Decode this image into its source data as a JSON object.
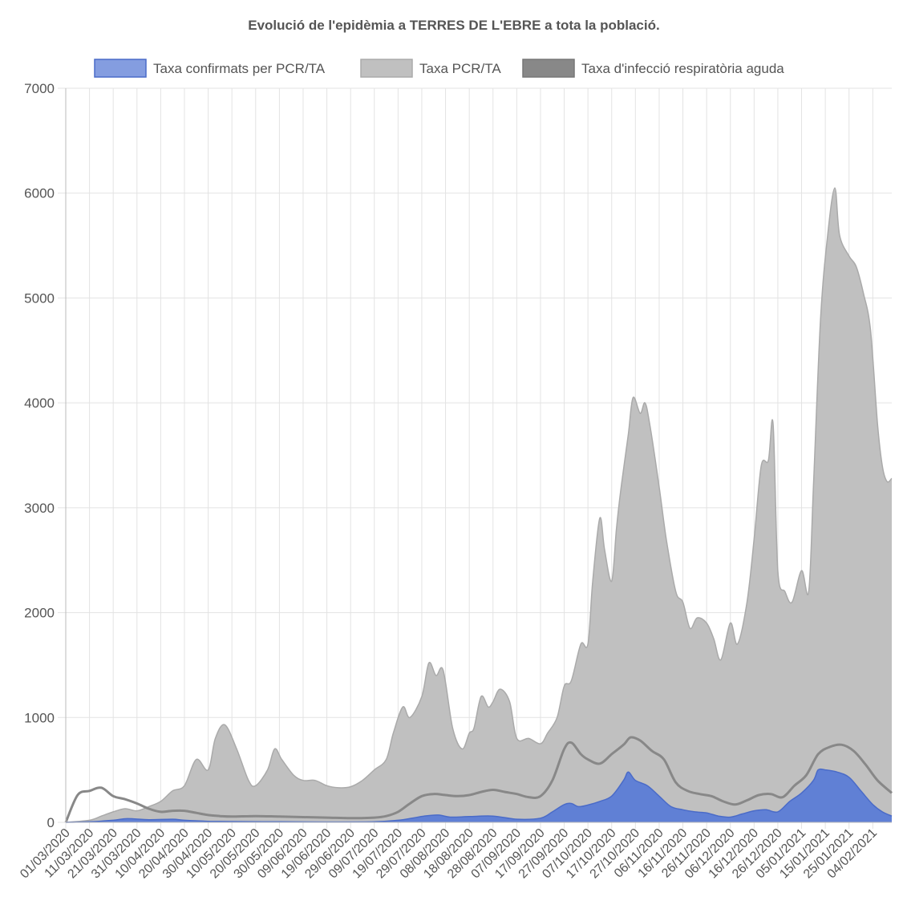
{
  "chart_data": {
    "type": "area",
    "title": "Evolució de l'epidèmia a TERRES DE L'EBRE a tota la població.",
    "xlabel": "",
    "ylabel": "",
    "ylim": [
      0,
      7000
    ],
    "yticks": [
      0,
      1000,
      2000,
      3000,
      4000,
      5000,
      6000,
      7000
    ],
    "x_range": [
      "01/03/2020",
      "12/02/2021"
    ],
    "xtick_labels": [
      "01/03/2020",
      "11/03/2020",
      "21/03/2020",
      "31/03/2020",
      "10/04/2020",
      "20/04/2020",
      "30/04/2020",
      "10/05/2020",
      "20/05/2020",
      "30/05/2020",
      "09/06/2020",
      "19/06/2020",
      "29/06/2020",
      "09/07/2020",
      "19/07/2020",
      "29/07/2020",
      "08/08/2020",
      "18/08/2020",
      "28/08/2020",
      "07/09/2020",
      "17/09/2020",
      "27/09/2020",
      "07/10/2020",
      "17/10/2020",
      "27/10/2020",
      "06/11/2020",
      "16/11/2020",
      "26/11/2020",
      "06/12/2020",
      "16/12/2020",
      "26/12/2020",
      "05/01/2021",
      "15/01/2021",
      "25/01/2021",
      "04/02/2021"
    ],
    "grid": true,
    "legend_position": "top",
    "series": [
      {
        "name": "Taxa confirmats per PCR/TA",
        "kind": "area",
        "fill": "#5b7cd6",
        "stroke": "#4a6bc8",
        "points": [
          [
            "01/03/2020",
            0
          ],
          [
            "11/03/2020",
            5
          ],
          [
            "21/03/2020",
            20
          ],
          [
            "27/03/2020",
            35
          ],
          [
            "05/04/2020",
            25
          ],
          [
            "15/04/2020",
            30
          ],
          [
            "20/04/2020",
            20
          ],
          [
            "30/04/2020",
            10
          ],
          [
            "10/05/2020",
            8
          ],
          [
            "30/05/2020",
            5
          ],
          [
            "19/06/2020",
            3
          ],
          [
            "09/07/2020",
            5
          ],
          [
            "19/07/2020",
            20
          ],
          [
            "25/07/2020",
            40
          ],
          [
            "30/07/2020",
            60
          ],
          [
            "05/08/2020",
            70
          ],
          [
            "10/08/2020",
            50
          ],
          [
            "18/08/2020",
            55
          ],
          [
            "28/08/2020",
            60
          ],
          [
            "07/09/2020",
            30
          ],
          [
            "17/09/2020",
            40
          ],
          [
            "22/09/2020",
            100
          ],
          [
            "27/09/2020",
            170
          ],
          [
            "30/09/2020",
            180
          ],
          [
            "03/10/2020",
            150
          ],
          [
            "07/10/2020",
            165
          ],
          [
            "12/10/2020",
            200
          ],
          [
            "17/10/2020",
            250
          ],
          [
            "22/10/2020",
            400
          ],
          [
            "24/10/2020",
            480
          ],
          [
            "27/10/2020",
            400
          ],
          [
            "01/11/2020",
            350
          ],
          [
            "06/11/2020",
            250
          ],
          [
            "11/11/2020",
            150
          ],
          [
            "16/11/2020",
            120
          ],
          [
            "21/11/2020",
            100
          ],
          [
            "26/11/2020",
            90
          ],
          [
            "01/12/2020",
            60
          ],
          [
            "06/12/2020",
            50
          ],
          [
            "11/12/2020",
            80
          ],
          [
            "16/12/2020",
            110
          ],
          [
            "21/12/2020",
            120
          ],
          [
            "26/12/2020",
            100
          ],
          [
            "31/12/2020",
            200
          ],
          [
            "05/01/2021",
            280
          ],
          [
            "10/01/2021",
            400
          ],
          [
            "12/01/2021",
            500
          ],
          [
            "15/01/2021",
            500
          ],
          [
            "20/01/2021",
            480
          ],
          [
            "25/01/2021",
            430
          ],
          [
            "30/01/2021",
            300
          ],
          [
            "04/02/2021",
            170
          ],
          [
            "08/02/2021",
            100
          ],
          [
            "12/02/2021",
            60
          ]
        ]
      },
      {
        "name": "Taxa PCR/TA",
        "kind": "area",
        "fill": "#c0c0c0",
        "stroke": "#aaaaaa",
        "points": [
          [
            "01/03/2020",
            0
          ],
          [
            "11/03/2020",
            20
          ],
          [
            "16/03/2020",
            60
          ],
          [
            "21/03/2020",
            100
          ],
          [
            "26/03/2020",
            130
          ],
          [
            "31/03/2020",
            110
          ],
          [
            "05/04/2020",
            150
          ],
          [
            "10/04/2020",
            200
          ],
          [
            "15/04/2020",
            300
          ],
          [
            "20/04/2020",
            350
          ],
          [
            "25/04/2020",
            600
          ],
          [
            "30/04/2020",
            500
          ],
          [
            "03/05/2020",
            800
          ],
          [
            "07/05/2020",
            930
          ],
          [
            "12/05/2020",
            700
          ],
          [
            "17/05/2020",
            400
          ],
          [
            "20/05/2020",
            350
          ],
          [
            "25/05/2020",
            500
          ],
          [
            "28/05/2020",
            700
          ],
          [
            "31/05/2020",
            600
          ],
          [
            "05/06/2020",
            450
          ],
          [
            "09/06/2020",
            400
          ],
          [
            "14/06/2020",
            400
          ],
          [
            "19/06/2020",
            350
          ],
          [
            "24/06/2020",
            330
          ],
          [
            "29/06/2020",
            340
          ],
          [
            "04/07/2020",
            400
          ],
          [
            "09/07/2020",
            500
          ],
          [
            "14/07/2020",
            600
          ],
          [
            "17/07/2020",
            850
          ],
          [
            "21/07/2020",
            1100
          ],
          [
            "24/07/2020",
            1000
          ],
          [
            "29/07/2020",
            1200
          ],
          [
            "01/08/2020",
            1520
          ],
          [
            "04/08/2020",
            1400
          ],
          [
            "07/08/2020",
            1450
          ],
          [
            "11/08/2020",
            900
          ],
          [
            "15/08/2020",
            700
          ],
          [
            "18/08/2020",
            850
          ],
          [
            "20/08/2020",
            900
          ],
          [
            "23/08/2020",
            1200
          ],
          [
            "26/08/2020",
            1100
          ],
          [
            "28/08/2020",
            1150
          ],
          [
            "31/08/2020",
            1270
          ],
          [
            "04/09/2020",
            1150
          ],
          [
            "07/09/2020",
            800
          ],
          [
            "12/09/2020",
            800
          ],
          [
            "17/09/2020",
            750
          ],
          [
            "20/09/2020",
            850
          ],
          [
            "24/09/2020",
            1000
          ],
          [
            "27/09/2020",
            1300
          ],
          [
            "30/09/2020",
            1350
          ],
          [
            "04/10/2020",
            1700
          ],
          [
            "07/10/2020",
            1700
          ],
          [
            "09/10/2020",
            2300
          ],
          [
            "12/10/2020",
            2900
          ],
          [
            "14/10/2020",
            2600
          ],
          [
            "17/10/2020",
            2300
          ],
          [
            "19/10/2020",
            2800
          ],
          [
            "21/10/2020",
            3200
          ],
          [
            "24/10/2020",
            3700
          ],
          [
            "26/10/2020",
            4050
          ],
          [
            "29/10/2020",
            3900
          ],
          [
            "31/10/2020",
            4000
          ],
          [
            "02/11/2020",
            3800
          ],
          [
            "06/11/2020",
            3200
          ],
          [
            "09/11/2020",
            2700
          ],
          [
            "13/11/2020",
            2200
          ],
          [
            "16/11/2020",
            2100
          ],
          [
            "19/11/2020",
            1850
          ],
          [
            "22/11/2020",
            1950
          ],
          [
            "26/11/2020",
            1900
          ],
          [
            "29/11/2020",
            1750
          ],
          [
            "02/12/2020",
            1550
          ],
          [
            "06/12/2020",
            1900
          ],
          [
            "09/12/2020",
            1700
          ],
          [
            "13/12/2020",
            2100
          ],
          [
            "16/12/2020",
            2700
          ],
          [
            "19/12/2020",
            3400
          ],
          [
            "22/12/2020",
            3450
          ],
          [
            "24/12/2020",
            3800
          ],
          [
            "26/12/2020",
            2400
          ],
          [
            "29/12/2020",
            2200
          ],
          [
            "01/01/2021",
            2100
          ],
          [
            "05/01/2021",
            2400
          ],
          [
            "08/01/2021",
            2200
          ],
          [
            "10/01/2021",
            3200
          ],
          [
            "13/01/2021",
            4800
          ],
          [
            "16/01/2021",
            5600
          ],
          [
            "19/01/2021",
            6050
          ],
          [
            "21/01/2021",
            5600
          ],
          [
            "25/01/2021",
            5400
          ],
          [
            "28/01/2021",
            5300
          ],
          [
            "31/01/2021",
            5050
          ],
          [
            "03/02/2021",
            4700
          ],
          [
            "06/02/2021",
            3800
          ],
          [
            "08/02/2021",
            3400
          ],
          [
            "10/02/2021",
            3250
          ],
          [
            "12/02/2021",
            3280
          ]
        ]
      },
      {
        "name": "Taxa d'infecció respiratòria aguda",
        "kind": "line",
        "stroke": "#888888",
        "points": [
          [
            "01/03/2020",
            0
          ],
          [
            "06/03/2020",
            260
          ],
          [
            "11/03/2020",
            300
          ],
          [
            "16/03/2020",
            330
          ],
          [
            "21/03/2020",
            250
          ],
          [
            "26/03/2020",
            220
          ],
          [
            "31/03/2020",
            180
          ],
          [
            "05/04/2020",
            130
          ],
          [
            "10/04/2020",
            100
          ],
          [
            "15/04/2020",
            110
          ],
          [
            "20/04/2020",
            110
          ],
          [
            "25/04/2020",
            90
          ],
          [
            "30/04/2020",
            70
          ],
          [
            "05/05/2020",
            60
          ],
          [
            "10/05/2020",
            55
          ],
          [
            "20/05/2020",
            60
          ],
          [
            "30/05/2020",
            55
          ],
          [
            "09/06/2020",
            50
          ],
          [
            "19/06/2020",
            45
          ],
          [
            "29/06/2020",
            40
          ],
          [
            "09/07/2020",
            45
          ],
          [
            "14/07/2020",
            60
          ],
          [
            "19/07/2020",
            100
          ],
          [
            "24/07/2020",
            180
          ],
          [
            "29/07/2020",
            250
          ],
          [
            "03/08/2020",
            270
          ],
          [
            "08/08/2020",
            260
          ],
          [
            "13/08/2020",
            250
          ],
          [
            "18/08/2020",
            260
          ],
          [
            "23/08/2020",
            290
          ],
          [
            "28/08/2020",
            310
          ],
          [
            "02/09/2020",
            290
          ],
          [
            "07/09/2020",
            270
          ],
          [
            "12/09/2020",
            240
          ],
          [
            "17/09/2020",
            250
          ],
          [
            "22/09/2020",
            400
          ],
          [
            "27/09/2020",
            700
          ],
          [
            "30/09/2020",
            760
          ],
          [
            "04/10/2020",
            650
          ],
          [
            "07/10/2020",
            600
          ],
          [
            "12/10/2020",
            560
          ],
          [
            "17/10/2020",
            650
          ],
          [
            "22/10/2020",
            740
          ],
          [
            "25/10/2020",
            810
          ],
          [
            "29/10/2020",
            780
          ],
          [
            "03/11/2020",
            680
          ],
          [
            "08/11/2020",
            600
          ],
          [
            "13/11/2020",
            380
          ],
          [
            "18/11/2020",
            300
          ],
          [
            "23/11/2020",
            270
          ],
          [
            "28/11/2020",
            250
          ],
          [
            "03/12/2020",
            200
          ],
          [
            "08/12/2020",
            170
          ],
          [
            "13/12/2020",
            210
          ],
          [
            "18/12/2020",
            260
          ],
          [
            "23/12/2020",
            270
          ],
          [
            "28/12/2020",
            240
          ],
          [
            "02/01/2021",
            350
          ],
          [
            "07/01/2021",
            450
          ],
          [
            "12/01/2021",
            650
          ],
          [
            "17/01/2021",
            720
          ],
          [
            "22/01/2021",
            740
          ],
          [
            "27/01/2021",
            680
          ],
          [
            "01/02/2021",
            550
          ],
          [
            "06/02/2021",
            400
          ],
          [
            "12/02/2021",
            280
          ]
        ]
      }
    ]
  }
}
